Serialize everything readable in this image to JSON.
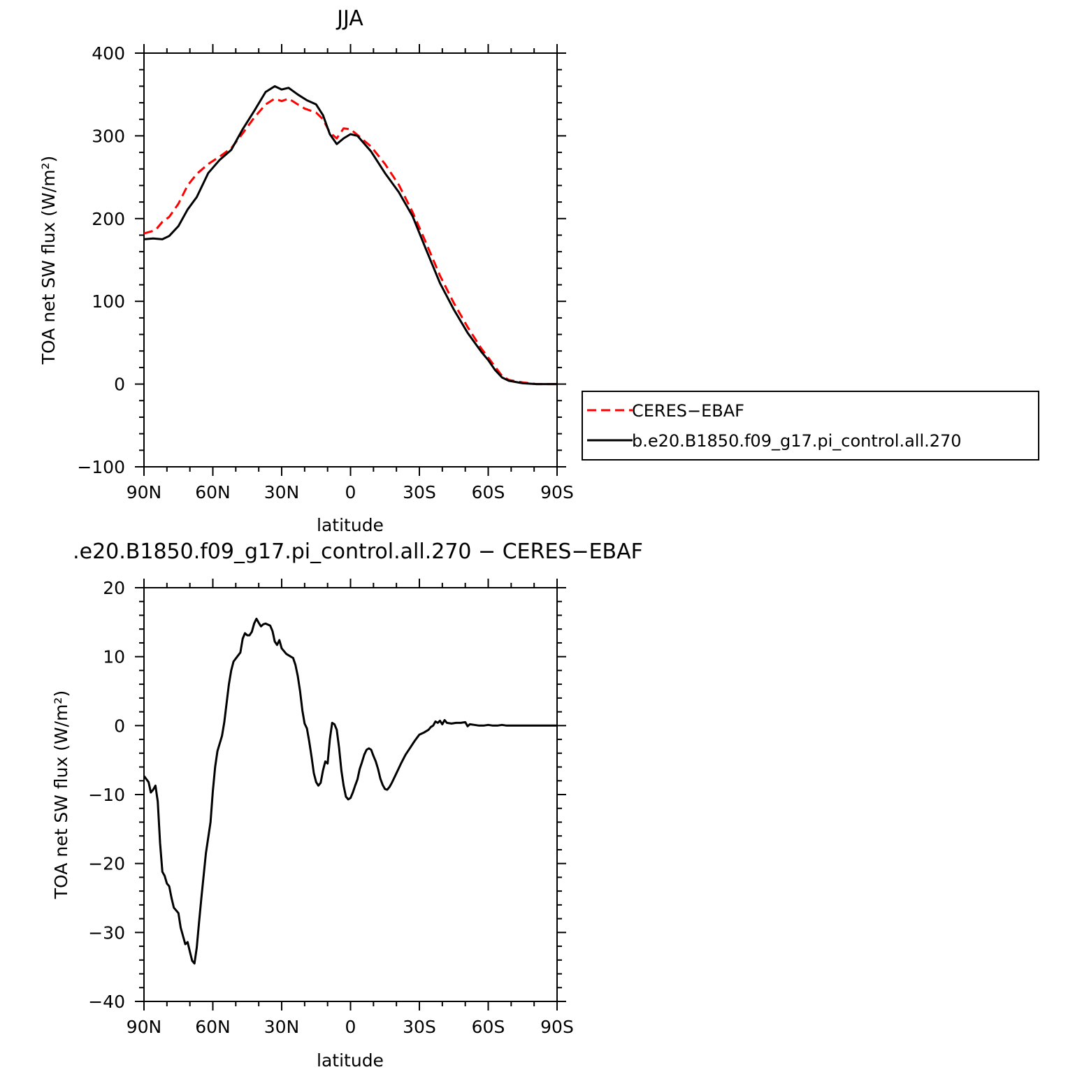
{
  "chart_data": [
    {
      "type": "line",
      "title": "JJA",
      "xlabel": "latitude",
      "ylabel": "TOA net SW flux (W/m²)",
      "xlim": [
        90,
        -90
      ],
      "ylim": [
        -100,
        400
      ],
      "x_tick_values": [
        90,
        60,
        30,
        0,
        -30,
        -60,
        -90
      ],
      "x_tick_labels": [
        "90N",
        "60N",
        "30N",
        "0",
        "30S",
        "60S",
        "90S"
      ],
      "y_tick_values": [
        -100,
        0,
        100,
        200,
        300,
        400
      ],
      "y_tick_labels": [
        "−100",
        "0",
        "100",
        "200",
        "300",
        "400"
      ],
      "grid": false,
      "legend_position": "right",
      "series": [
        {
          "name": "CERES−EBAF",
          "color": "#ff0000",
          "style": "dashed",
          "points": [
            [
              90,
              182
            ],
            [
              85,
              186
            ],
            [
              82,
              196
            ],
            [
              79,
              202
            ],
            [
              75,
              218
            ],
            [
              71,
              240
            ],
            [
              67,
              254
            ],
            [
              62,
              266
            ],
            [
              57,
              275
            ],
            [
              52,
              285
            ],
            [
              47,
              303
            ],
            [
              42,
              322
            ],
            [
              37,
              338
            ],
            [
              33,
              345
            ],
            [
              30,
              342
            ],
            [
              27,
              345
            ],
            [
              23,
              338
            ],
            [
              20,
              333
            ],
            [
              15,
              328
            ],
            [
              12,
              320
            ],
            [
              9,
              304
            ],
            [
              6,
              297
            ],
            [
              3,
              309
            ],
            [
              0,
              308
            ],
            [
              -3,
              301
            ],
            [
              -9,
              287
            ],
            [
              -15,
              266
            ],
            [
              -21,
              241
            ],
            [
              -27,
              208
            ],
            [
              -33,
              170
            ],
            [
              -39,
              131
            ],
            [
              -45,
              98
            ],
            [
              -51,
              69
            ],
            [
              -57,
              43
            ],
            [
              -60,
              32
            ],
            [
              -63,
              21
            ],
            [
              -66,
              10
            ],
            [
              -69,
              5
            ],
            [
              -75,
              2
            ],
            [
              -81,
              0
            ],
            [
              -90,
              0
            ]
          ]
        },
        {
          "name": "b.e20.B1850.f09_g17.pi_control.all.270",
          "color": "#000000",
          "style": "solid",
          "points": [
            [
              90,
              175
            ],
            [
              86,
              176
            ],
            [
              82,
              175
            ],
            [
              79,
              179
            ],
            [
              75,
              191
            ],
            [
              71,
              211
            ],
            [
              67,
              226
            ],
            [
              62,
              255
            ],
            [
              57,
              271
            ],
            [
              52,
              283
            ],
            [
              47,
              308
            ],
            [
              42,
              330
            ],
            [
              37,
              353
            ],
            [
              33,
              360
            ],
            [
              30,
              356
            ],
            [
              27,
              358
            ],
            [
              23,
              350
            ],
            [
              19,
              343
            ],
            [
              15,
              338
            ],
            [
              12,
              325
            ],
            [
              9,
              302
            ],
            [
              6,
              290
            ],
            [
              3,
              297
            ],
            [
              0,
              302
            ],
            [
              -3,
              300
            ],
            [
              -9,
              281
            ],
            [
              -15,
              255
            ],
            [
              -21,
              232
            ],
            [
              -27,
              203
            ],
            [
              -33,
              162
            ],
            [
              -39,
              122
            ],
            [
              -45,
              90
            ],
            [
              -51,
              62
            ],
            [
              -57,
              39
            ],
            [
              -60,
              29
            ],
            [
              -63,
              17
            ],
            [
              -66,
              8
            ],
            [
              -69,
              4
            ],
            [
              -75,
              1
            ],
            [
              -81,
              0
            ],
            [
              -90,
              0
            ]
          ]
        }
      ]
    },
    {
      "type": "line",
      "title": ".e20.B1850.f09_g17.pi_control.all.270 − CERES−EBAF",
      "xlabel": "latitude",
      "ylabel": "TOA net SW flux (W/m²)",
      "xlim": [
        90,
        -90
      ],
      "ylim": [
        -40,
        20
      ],
      "x_tick_values": [
        90,
        60,
        30,
        0,
        -30,
        -60,
        -90
      ],
      "x_tick_labels": [
        "90N",
        "60N",
        "30N",
        "0",
        "30S",
        "60S",
        "90S"
      ],
      "y_tick_values": [
        -40,
        -30,
        -20,
        -10,
        0,
        10,
        20
      ],
      "y_tick_labels": [
        "−40",
        "−30",
        "−20",
        "−10",
        "0",
        "10",
        "20"
      ],
      "grid": false,
      "series": [
        {
          "color": "#000000",
          "style": "solid",
          "points": [
            [
              90,
              -7.3
            ],
            [
              88,
              -8.2
            ],
            [
              87,
              -9.7
            ],
            [
              86,
              -9.3
            ],
            [
              85,
              -8.7
            ],
            [
              84,
              -11
            ],
            [
              83,
              -17
            ],
            [
              82,
              -21.2
            ],
            [
              81,
              -21.8
            ],
            [
              80,
              -22.9
            ],
            [
              79,
              -23.3
            ],
            [
              78,
              -25
            ],
            [
              77,
              -26.4
            ],
            [
              75,
              -27.2
            ],
            [
              74,
              -29.3
            ],
            [
              72,
              -31.7
            ],
            [
              71,
              -31.4
            ],
            [
              70,
              -32.8
            ],
            [
              69,
              -34.1
            ],
            [
              68,
              -34.5
            ],
            [
              67,
              -32.2
            ],
            [
              66,
              -28.5
            ],
            [
              65,
              -25
            ],
            [
              63,
              -18.5
            ],
            [
              61,
              -14
            ],
            [
              60,
              -9.5
            ],
            [
              59,
              -6
            ],
            [
              58,
              -3.7
            ],
            [
              56,
              -1.5
            ],
            [
              55,
              0.5
            ],
            [
              53,
              6
            ],
            [
              52,
              8
            ],
            [
              51,
              9.3
            ],
            [
              48,
              10.6
            ],
            [
              47,
              12.6
            ],
            [
              46,
              13.4
            ],
            [
              45,
              13.1
            ],
            [
              44,
              13.1
            ],
            [
              43,
              13.6
            ],
            [
              42,
              14.8
            ],
            [
              41,
              15.5
            ],
            [
              40,
              14.9
            ],
            [
              39,
              14.4
            ],
            [
              38,
              14.7
            ],
            [
              37,
              14.8
            ],
            [
              35,
              14.5
            ],
            [
              34,
              13.7
            ],
            [
              33,
              12.2
            ],
            [
              32,
              11.7
            ],
            [
              31,
              12.4
            ],
            [
              30,
              11.2
            ],
            [
              28,
              10.4
            ],
            [
              26,
              10.0
            ],
            [
              25,
              9.8
            ],
            [
              24,
              8.8
            ],
            [
              23,
              7.2
            ],
            [
              22,
              5.0
            ],
            [
              21,
              2.2
            ],
            [
              20,
              0.3
            ],
            [
              19,
              -0.4
            ],
            [
              18,
              -2.3
            ],
            [
              17,
              -4.5
            ],
            [
              16,
              -6.9
            ],
            [
              15,
              -8.2
            ],
            [
              14,
              -8.7
            ],
            [
              13,
              -8.3
            ],
            [
              12,
              -6.5
            ],
            [
              11,
              -5.2
            ],
            [
              10,
              -5.5
            ],
            [
              9,
              -2.0
            ],
            [
              8,
              0.4
            ],
            [
              7,
              0.2
            ],
            [
              6,
              -0.6
            ],
            [
              5,
              -3.2
            ],
            [
              4,
              -6.5
            ],
            [
              3,
              -8.7
            ],
            [
              2,
              -10.3
            ],
            [
              1,
              -10.7
            ],
            [
              0,
              -10.5
            ],
            [
              -1,
              -9.7
            ],
            [
              -2,
              -8.7
            ],
            [
              -3,
              -7.8
            ],
            [
              -4,
              -6.3
            ],
            [
              -5,
              -5.3
            ],
            [
              -6,
              -4.2
            ],
            [
              -7,
              -3.5
            ],
            [
              -8,
              -3.3
            ],
            [
              -9,
              -3.5
            ],
            [
              -10,
              -4.4
            ],
            [
              -11,
              -5.2
            ],
            [
              -12,
              -6.3
            ],
            [
              -13,
              -7.7
            ],
            [
              -14,
              -8.6
            ],
            [
              -15,
              -9.2
            ],
            [
              -16,
              -9.3
            ],
            [
              -17,
              -8.9
            ],
            [
              -18,
              -8.3
            ],
            [
              -20,
              -6.9
            ],
            [
              -22,
              -5.5
            ],
            [
              -24,
              -4.2
            ],
            [
              -26,
              -3.2
            ],
            [
              -28,
              -2.2
            ],
            [
              -30,
              -1.3
            ],
            [
              -32,
              -1.0
            ],
            [
              -34,
              -0.6
            ],
            [
              -35,
              -0.2
            ],
            [
              -36,
              0.0
            ],
            [
              -37,
              0.6
            ],
            [
              -38,
              0.4
            ],
            [
              -39,
              0.7
            ],
            [
              -40,
              0.2
            ],
            [
              -41,
              0.8
            ],
            [
              -42,
              0.4
            ],
            [
              -44,
              0.3
            ],
            [
              -46,
              0.4
            ],
            [
              -48,
              0.4
            ],
            [
              -50,
              0.5
            ],
            [
              -51,
              -0.1
            ],
            [
              -52,
              0.2
            ],
            [
              -54,
              0.1
            ],
            [
              -56,
              0.0
            ],
            [
              -58,
              0.0
            ],
            [
              -60,
              0.1
            ],
            [
              -62,
              0.0
            ],
            [
              -64,
              0.0
            ],
            [
              -66,
              0.1
            ],
            [
              -68,
              0.0
            ],
            [
              -70,
              0.0
            ],
            [
              -72,
              0.0
            ],
            [
              -74,
              0.0
            ],
            [
              -76,
              0.0
            ],
            [
              -78,
              0.0
            ],
            [
              -80,
              0.0
            ],
            [
              -82,
              0.0
            ],
            [
              -84,
              0.0
            ],
            [
              -86,
              0.0
            ],
            [
              -88,
              0.0
            ],
            [
              -90,
              0.0
            ]
          ]
        }
      ]
    }
  ]
}
